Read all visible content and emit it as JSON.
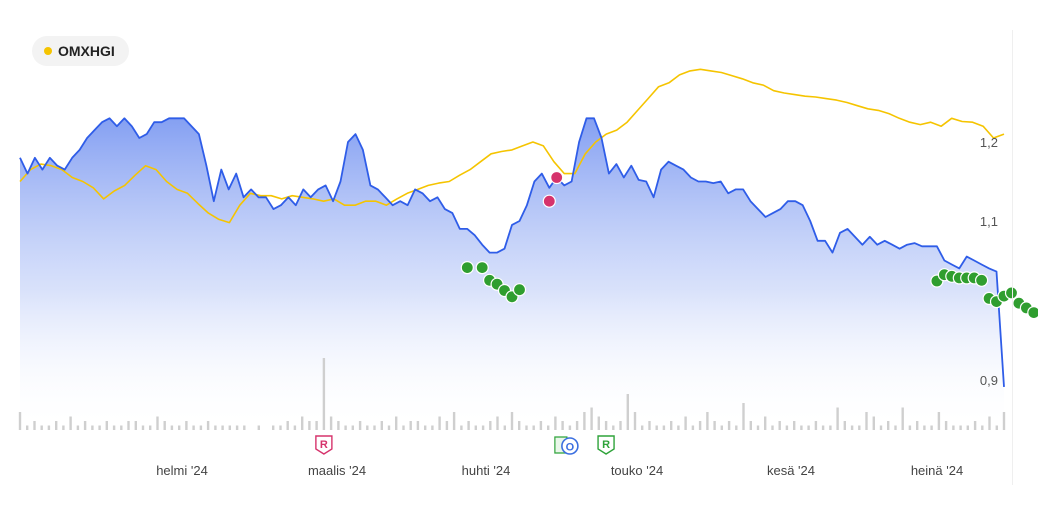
{
  "legend": {
    "label": "OMXHGI",
    "color": "#f5c400"
  },
  "chart_data": {
    "type": "line",
    "y_ticks": [
      "1,2",
      "1,1",
      "0,9"
    ],
    "x_ticks": [
      "helmi '24",
      "maalis '24",
      "huhti '24",
      "touko '24",
      "kesä '24",
      "heinä '24"
    ],
    "series": [
      {
        "role": "stock",
        "color": "#2f5de8",
        "values": [
          1.18,
          1.16,
          1.18,
          1.165,
          1.18,
          1.17,
          1.165,
          1.18,
          1.19,
          1.205,
          1.215,
          1.225,
          1.23,
          1.22,
          1.23,
          1.22,
          1.205,
          1.21,
          1.225,
          1.225,
          1.23,
          1.23,
          1.23,
          1.22,
          1.21,
          1.17,
          1.125,
          1.165,
          1.14,
          1.16,
          1.13,
          1.14,
          1.13,
          1.13,
          1.115,
          1.12,
          1.13,
          1.12,
          1.14,
          1.13,
          1.14,
          1.145,
          1.125,
          1.15,
          1.2,
          1.21,
          1.19,
          1.145,
          1.14,
          1.13,
          1.12,
          1.125,
          1.12,
          1.14,
          1.135,
          1.125,
          1.13,
          1.115,
          1.11,
          1.09,
          1.09,
          1.082,
          1.07,
          1.06,
          1.06,
          1.065,
          1.095,
          1.1,
          1.12,
          1.15,
          1.16,
          1.142,
          1.155,
          1.145,
          1.15,
          1.2,
          1.23,
          1.23,
          1.205,
          1.16,
          1.172,
          1.155,
          1.17,
          1.152,
          1.15,
          1.13,
          1.165,
          1.175,
          1.17,
          1.165,
          1.155,
          1.15,
          1.15,
          1.148,
          1.15,
          1.135,
          1.14,
          1.14,
          1.125,
          1.115,
          1.105,
          1.11,
          1.115,
          1.125,
          1.125,
          1.12,
          1.1,
          1.075,
          1.075,
          1.06,
          1.085,
          1.09,
          1.08,
          1.07,
          1.08,
          1.07,
          1.075,
          1.07,
          1.065,
          1.07,
          1.072,
          1.068,
          1.068,
          1.068,
          1.05,
          1.045,
          1.04,
          1.055,
          1.05,
          1.045,
          1.04,
          1.036,
          0.89
        ]
      },
      {
        "name": "OMXHGI",
        "role": "index",
        "color": "#f5c400",
        "values": [
          1.15,
          1.165,
          1.172,
          1.17,
          1.165,
          1.155,
          1.15,
          1.142,
          1.128,
          1.138,
          1.145,
          1.158,
          1.17,
          1.165,
          1.15,
          1.14,
          1.135,
          1.122,
          1.11,
          1.102,
          1.098,
          1.12,
          1.135,
          1.132,
          1.132,
          1.128,
          1.132,
          1.13,
          1.128,
          1.125,
          1.128,
          1.12,
          1.12,
          1.125,
          1.125,
          1.12,
          1.128,
          1.135,
          1.14,
          1.145,
          1.148,
          1.15,
          1.158,
          1.165,
          1.175,
          1.185,
          1.188,
          1.19,
          1.195,
          1.2,
          1.195,
          1.175,
          1.16,
          1.16,
          1.185,
          1.2,
          1.21,
          1.215,
          1.225,
          1.24,
          1.255,
          1.27,
          1.275,
          1.285,
          1.29,
          1.292,
          1.29,
          1.288,
          1.284,
          1.28,
          1.275,
          1.272,
          1.265,
          1.262,
          1.26,
          1.258,
          1.257,
          1.255,
          1.253,
          1.25,
          1.246,
          1.242,
          1.24,
          1.236,
          1.23,
          1.225,
          1.222,
          1.225,
          1.22,
          1.23,
          1.226,
          1.225,
          1.22,
          1.205,
          1.21
        ]
      }
    ],
    "markers": {
      "green_points": [
        [
          60,
          1.041
        ],
        [
          62,
          1.041
        ],
        [
          63,
          1.025
        ],
        [
          64,
          1.02
        ],
        [
          65,
          1.012
        ],
        [
          66,
          1.004
        ],
        [
          67,
          1.013
        ],
        [
          123,
          1.024
        ],
        [
          124,
          1.032
        ],
        [
          125,
          1.03
        ],
        [
          126,
          1.028
        ],
        [
          127,
          1.028
        ],
        [
          128,
          1.028
        ],
        [
          129,
          1.025
        ],
        [
          130,
          1.002
        ],
        [
          131,
          0.998
        ],
        [
          132,
          1.005
        ],
        [
          133,
          1.009
        ],
        [
          134,
          0.996
        ],
        [
          135,
          0.99
        ],
        [
          136,
          0.984
        ]
      ],
      "red_points": [
        [
          71,
          1.125
        ],
        [
          72,
          1.155
        ]
      ]
    },
    "volume": [
      4,
      1,
      2,
      1,
      1,
      2,
      1,
      3,
      1,
      2,
      1,
      1,
      2,
      1,
      1,
      2,
      2,
      1,
      1,
      3,
      2,
      1,
      1,
      2,
      1,
      1,
      2,
      1,
      1,
      1,
      1,
      1,
      0,
      1,
      0,
      1,
      1,
      2,
      1,
      3,
      2,
      2,
      16,
      3,
      2,
      1,
      1,
      2,
      1,
      1,
      2,
      1,
      3,
      1,
      2,
      2,
      1,
      1,
      3,
      2,
      4,
      1,
      2,
      1,
      1,
      2,
      3,
      1,
      4,
      2,
      1,
      1,
      2,
      1,
      3,
      2,
      1,
      2,
      4,
      5,
      3,
      2,
      1,
      2,
      8,
      4,
      1,
      2,
      1,
      1,
      2,
      1,
      3,
      1,
      2,
      4,
      2,
      1,
      2,
      1,
      6,
      2,
      1,
      3,
      1,
      2,
      1,
      2,
      1,
      1,
      2,
      1,
      1,
      5,
      2,
      1,
      1,
      4,
      3,
      1,
      2,
      1,
      5,
      1,
      2,
      1,
      1,
      4,
      2,
      1,
      1,
      1,
      2,
      1,
      3,
      1,
      4
    ],
    "events": [
      {
        "label": "R",
        "type": "R",
        "color": "#d6336c",
        "index": 42
      },
      {
        "label": "O",
        "type": "O",
        "color": "#3b6fe0",
        "index": 76
      },
      {
        "label": "R",
        "type": "R",
        "color": "#2fa33a",
        "index": 81
      }
    ],
    "grid": false
  }
}
